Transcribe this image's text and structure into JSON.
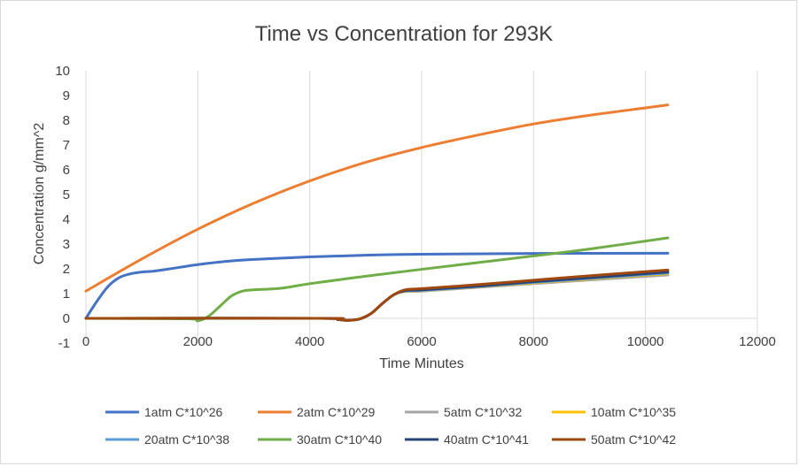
{
  "chart_data": {
    "type": "line",
    "title": "Time vs Concentration for 293K",
    "xlabel": "Time Minutes",
    "ylabel": "Concentration g/mm^2",
    "xlim": [
      0,
      12000
    ],
    "ylim": [
      -1,
      10
    ],
    "xticks": [
      0,
      2000,
      4000,
      6000,
      8000,
      10000,
      12000
    ],
    "yticks": [
      -1,
      0,
      1,
      2,
      3,
      4,
      5,
      6,
      7,
      8,
      9,
      10
    ],
    "grid": "vertical",
    "legend_position": "bottom",
    "series": [
      {
        "name": "1atm C*10^26",
        "color": "#4472C4",
        "x": [
          0,
          200,
          400,
          600,
          800,
          1000,
          1200,
          1500,
          2000,
          2500,
          3000,
          4000,
          5000,
          6000,
          8000,
          10400
        ],
        "y": [
          0,
          0.7,
          1.3,
          1.65,
          1.8,
          1.87,
          1.9,
          2.0,
          2.17,
          2.3,
          2.38,
          2.48,
          2.55,
          2.59,
          2.62,
          2.63
        ]
      },
      {
        "name": "2atm C*10^29",
        "color": "#ED7D31",
        "x": [
          0,
          1000,
          2000,
          3000,
          4000,
          5000,
          6000,
          7000,
          8000,
          9000,
          10000,
          10400
        ],
        "y": [
          1.1,
          2.4,
          3.6,
          4.65,
          5.55,
          6.3,
          6.9,
          7.4,
          7.85,
          8.2,
          8.5,
          8.62
        ]
      },
      {
        "name": "5atm C*10^32",
        "color": "#A5A5A5",
        "x": [
          0,
          4200,
          4500,
          4700,
          4900,
          5100,
          5300,
          5500,
          5700,
          6000,
          7000,
          8000,
          9000,
          10400
        ],
        "y": [
          0,
          0,
          -0.05,
          -0.08,
          -0.02,
          0.2,
          0.6,
          0.95,
          1.08,
          1.1,
          1.25,
          1.4,
          1.55,
          1.75
        ]
      },
      {
        "name": "10atm C*10^35",
        "color": "#FFC000",
        "x": [
          0,
          4200,
          4500,
          4700,
          4900,
          5100,
          5300,
          5500,
          5700,
          6000,
          7000,
          8000,
          9000,
          10400
        ],
        "y": [
          0,
          0,
          -0.05,
          -0.08,
          -0.02,
          0.2,
          0.6,
          0.95,
          1.09,
          1.12,
          1.27,
          1.43,
          1.59,
          1.8
        ]
      },
      {
        "name": "20atm C*10^38",
        "color": "#5B9BD5",
        "x": [
          0,
          4200,
          4500,
          4700,
          4900,
          5100,
          5300,
          5500,
          5700,
          6000,
          7000,
          8000,
          9000,
          10400
        ],
        "y": [
          0,
          0,
          -0.05,
          -0.08,
          -0.02,
          0.2,
          0.6,
          0.95,
          1.1,
          1.13,
          1.28,
          1.45,
          1.61,
          1.83
        ]
      },
      {
        "name": "30atm C*10^40",
        "color": "#70AD47",
        "x": [
          0,
          1800,
          2000,
          2200,
          2400,
          2600,
          2800,
          3000,
          3500,
          4000,
          5000,
          6000,
          7000,
          8000,
          9000,
          10400
        ],
        "y": [
          0,
          -0.02,
          -0.1,
          0.1,
          0.5,
          0.9,
          1.1,
          1.15,
          1.22,
          1.4,
          1.7,
          1.98,
          2.25,
          2.52,
          2.8,
          3.25
        ]
      },
      {
        "name": "40atm C*10^41",
        "color": "#264478",
        "x": [
          0,
          4200,
          4500,
          4700,
          4900,
          5100,
          5300,
          5500,
          5700,
          6000,
          7000,
          8000,
          9000,
          10400
        ],
        "y": [
          0,
          0,
          -0.05,
          -0.08,
          -0.02,
          0.2,
          0.6,
          0.95,
          1.12,
          1.15,
          1.3,
          1.48,
          1.64,
          1.87
        ]
      },
      {
        "name": "50atm C*10^42",
        "color": "#9E480E",
        "x": [
          0,
          4200,
          4500,
          4700,
          4900,
          5100,
          5300,
          5500,
          5700,
          6000,
          7000,
          8000,
          9000,
          10400
        ],
        "y": [
          0,
          0,
          -0.05,
          -0.08,
          -0.02,
          0.2,
          0.6,
          0.95,
          1.15,
          1.2,
          1.36,
          1.54,
          1.72,
          1.95
        ]
      }
    ]
  }
}
